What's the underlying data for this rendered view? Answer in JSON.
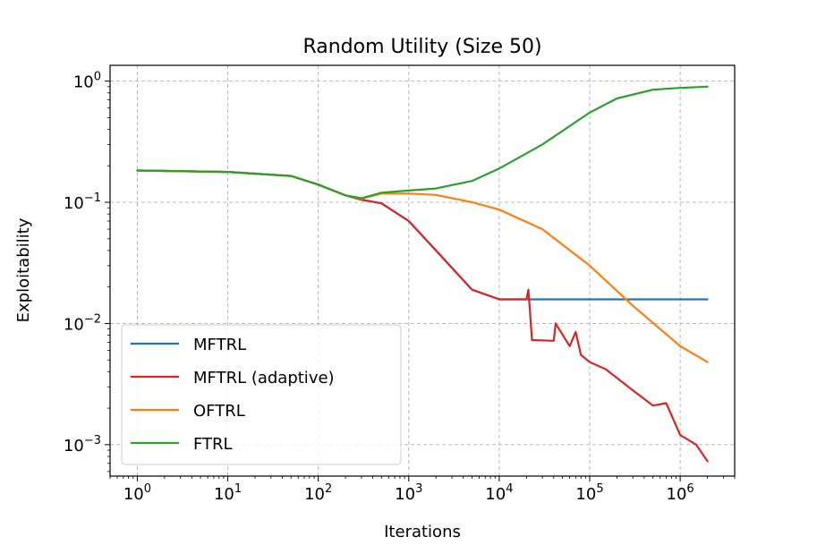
{
  "chart_data": {
    "type": "line",
    "title": "Random Utility (Size 50)",
    "xlabel": "Iterations",
    "ylabel": "Exploitability",
    "xscale": "log",
    "yscale": "log",
    "xlim": [
      0.5,
      4000000
    ],
    "ylim": [
      0.00055,
      1.35
    ],
    "grid": true,
    "legend_position": "lower-left",
    "x_ticks": [
      {
        "base": "10",
        "exp": "0",
        "value": 1
      },
      {
        "base": "10",
        "exp": "1",
        "value": 10
      },
      {
        "base": "10",
        "exp": "2",
        "value": 100
      },
      {
        "base": "10",
        "exp": "3",
        "value": 1000
      },
      {
        "base": "10",
        "exp": "4",
        "value": 10000
      },
      {
        "base": "10",
        "exp": "5",
        "value": 100000
      },
      {
        "base": "10",
        "exp": "6",
        "value": 1000000
      }
    ],
    "y_ticks": [
      {
        "base": "10",
        "exp": "0",
        "value": 1
      },
      {
        "base": "10",
        "exp": "−1",
        "value": 0.1
      },
      {
        "base": "10",
        "exp": "−2",
        "value": 0.01
      },
      {
        "base": "10",
        "exp": "−3",
        "value": 0.001
      }
    ],
    "series": [
      {
        "name": "MFTRL",
        "color": "#1f77b4",
        "x": [
          1,
          10,
          50,
          100,
          200,
          300,
          500,
          1000,
          2000,
          5000,
          10000,
          20000,
          100000,
          1000000,
          2000000
        ],
        "y": [
          0.183,
          0.178,
          0.165,
          0.14,
          0.114,
          0.105,
          0.098,
          0.07,
          0.04,
          0.019,
          0.0158,
          0.0158,
          0.0158,
          0.0158,
          0.0158
        ]
      },
      {
        "name": "MFTRL (adaptive)",
        "color": "#d62728",
        "x": [
          1,
          10,
          50,
          100,
          200,
          300,
          500,
          1000,
          2000,
          5000,
          10000,
          20000,
          21000,
          23000,
          40000,
          42000,
          60000,
          70000,
          80000,
          100000,
          150000,
          300000,
          500000,
          700000,
          1000000,
          1500000,
          2000000
        ],
        "y": [
          0.183,
          0.178,
          0.165,
          0.14,
          0.114,
          0.105,
          0.098,
          0.07,
          0.04,
          0.019,
          0.0158,
          0.0158,
          0.019,
          0.0073,
          0.0072,
          0.01,
          0.0065,
          0.0085,
          0.0055,
          0.0048,
          0.0042,
          0.0028,
          0.0021,
          0.0022,
          0.0012,
          0.001,
          0.00073
        ]
      },
      {
        "name": "OFTRL",
        "color": "#ff7f0e",
        "x": [
          1,
          10,
          50,
          100,
          200,
          300,
          500,
          1000,
          2000,
          5000,
          10000,
          30000,
          100000,
          300000,
          1000000,
          2000000
        ],
        "y": [
          0.183,
          0.178,
          0.165,
          0.14,
          0.114,
          0.107,
          0.118,
          0.118,
          0.115,
          0.1,
          0.087,
          0.06,
          0.03,
          0.014,
          0.0065,
          0.0048
        ]
      },
      {
        "name": "FTRL",
        "color": "#2ca02c",
        "x": [
          1,
          10,
          50,
          100,
          200,
          300,
          500,
          1000,
          2000,
          5000,
          10000,
          30000,
          100000,
          200000,
          500000,
          1000000,
          2000000
        ],
        "y": [
          0.183,
          0.178,
          0.165,
          0.14,
          0.114,
          0.108,
          0.12,
          0.125,
          0.13,
          0.15,
          0.19,
          0.3,
          0.55,
          0.72,
          0.85,
          0.88,
          0.9
        ]
      }
    ]
  }
}
